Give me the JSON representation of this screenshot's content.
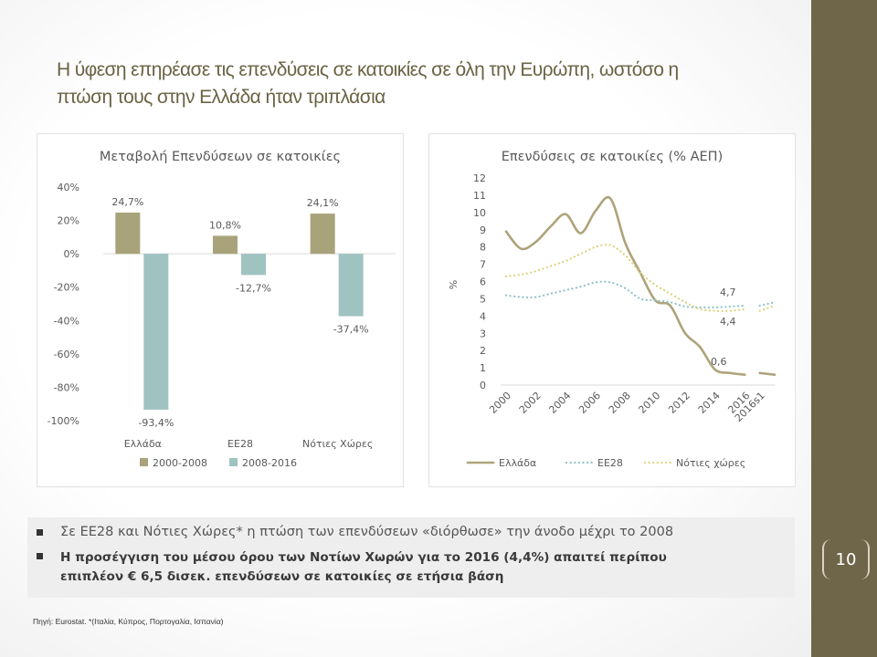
{
  "slide": {
    "title_line1": "Η ύφεση επηρέασε τις επενδύσεις σε κατοικίες σε όλη την Ευρώπη, ωστόσο η",
    "title_line2": "πτώση τους στην Ελλάδα ήταν τριπλάσια",
    "page_number": "10",
    "bullet1": "Σε ΕΕ28 και Νότιες Χώρες* η πτώση των επενδύσεων «διόρθωσε» την άνοδο μέχρι το 2008",
    "bullet2_line1": "Η προσέγγιση του μέσου όρου των Νοτίων Χωρών για το 2016 (4,4%) απαιτεί περίπου",
    "bullet2_line2": "επιπλέον € 6,5 δισεκ. επενδύσεων σε κατοικίες σε ετήσια βάση",
    "source": "Πηγή: Eurostat. *(Ιταλία, Κύπρος, Πορτογαλία, Ισπανία)",
    "colors": {
      "sidebar": "#6f6649",
      "series1": "#a9a37b",
      "series2": "#9fc3c1",
      "line_gr": "#aea37a",
      "line_eu": "#8fc2c8",
      "line_south": "#dcd27c"
    }
  },
  "chart_data": [
    {
      "type": "bar",
      "title": "Μεταβολή Επενδύσεων σε κατοικίες",
      "categories": [
        "Ελλάδα",
        "ΕΕ28",
        "Νότιες Χώρες"
      ],
      "series": [
        {
          "name": "2000-2008",
          "values": [
            24.7,
            10.8,
            24.1
          ],
          "labels": [
            "24,7%",
            "10,8%",
            "24,1%"
          ]
        },
        {
          "name": "2008-2016",
          "values": [
            -93.4,
            -12.7,
            -37.4
          ],
          "labels": [
            "-93,4%",
            "-12,7%",
            "-37,4%"
          ]
        }
      ],
      "ylim": [
        -100,
        40
      ],
      "yticks": [
        "40%",
        "20%",
        "0%",
        "-20%",
        "-40%",
        "-60%",
        "-80%",
        "-100%"
      ],
      "ytick_values": [
        40,
        20,
        0,
        -20,
        -40,
        -60,
        -80,
        -100
      ],
      "legend": "bottom",
      "grid": false
    },
    {
      "type": "line",
      "title": "Επενδύσεις σε κατοικίες (% ΑΕΠ)",
      "ylabel": "%",
      "ylim": [
        0,
        12
      ],
      "yticks": [
        "0",
        "1",
        "2",
        "3",
        "4",
        "5",
        "6",
        "7",
        "8",
        "9",
        "10",
        "11",
        "12"
      ],
      "x_tick_labels": [
        "2000",
        "2002",
        "2004",
        "2006",
        "2008",
        "2010",
        "2012",
        "2014",
        "2016",
        "2016s1"
      ],
      "x_tick_values": [
        2000,
        2002,
        2004,
        2006,
        2008,
        2010,
        2012,
        2014,
        2016,
        2017
      ],
      "xlim": [
        2000,
        2018
      ],
      "legend": "bottom",
      "grid": false,
      "series": [
        {
          "name": "Ελλάδα",
          "style": "solid",
          "x": [
            2000,
            2001,
            2002,
            2003,
            2004,
            2005,
            2006,
            2007,
            2008,
            2009,
            2010,
            2011,
            2012,
            2013,
            2014,
            2015,
            2016
          ],
          "y": [
            8.9,
            7.9,
            8.3,
            9.2,
            9.9,
            8.8,
            10.1,
            10.8,
            8.2,
            6.5,
            4.9,
            4.6,
            3.0,
            2.2,
            0.9,
            0.7,
            0.6
          ],
          "extra": {
            "x": [
              2017,
              2018
            ],
            "y": [
              0.7,
              0.6
            ]
          },
          "end_label": "0,6"
        },
        {
          "name": "ΕΕ28",
          "style": "dotted",
          "x": [
            2000,
            2001,
            2002,
            2003,
            2004,
            2005,
            2006,
            2007,
            2008,
            2009,
            2010,
            2011,
            2012,
            2013,
            2014,
            2015,
            2016
          ],
          "y": [
            5.2,
            5.1,
            5.1,
            5.3,
            5.5,
            5.7,
            5.95,
            5.95,
            5.6,
            5.0,
            4.9,
            4.8,
            4.55,
            4.5,
            4.5,
            4.55,
            4.6
          ],
          "extra": {
            "x": [
              2017,
              2018
            ],
            "y": [
              4.6,
              4.8
            ]
          },
          "end_label": "4,7"
        },
        {
          "name": "Νότιες χώρες",
          "style": "dotted",
          "x": [
            2000,
            2001,
            2002,
            2003,
            2004,
            2005,
            2006,
            2007,
            2008,
            2009,
            2010,
            2011,
            2012,
            2013,
            2014,
            2015,
            2016
          ],
          "y": [
            6.3,
            6.4,
            6.6,
            6.9,
            7.2,
            7.6,
            8.0,
            8.1,
            7.5,
            6.5,
            5.8,
            5.3,
            4.8,
            4.4,
            4.3,
            4.3,
            4.4
          ],
          "extra": {
            "x": [
              2017,
              2018
            ],
            "y": [
              4.3,
              4.6
            ]
          },
          "end_label": "4,4"
        }
      ]
    }
  ]
}
